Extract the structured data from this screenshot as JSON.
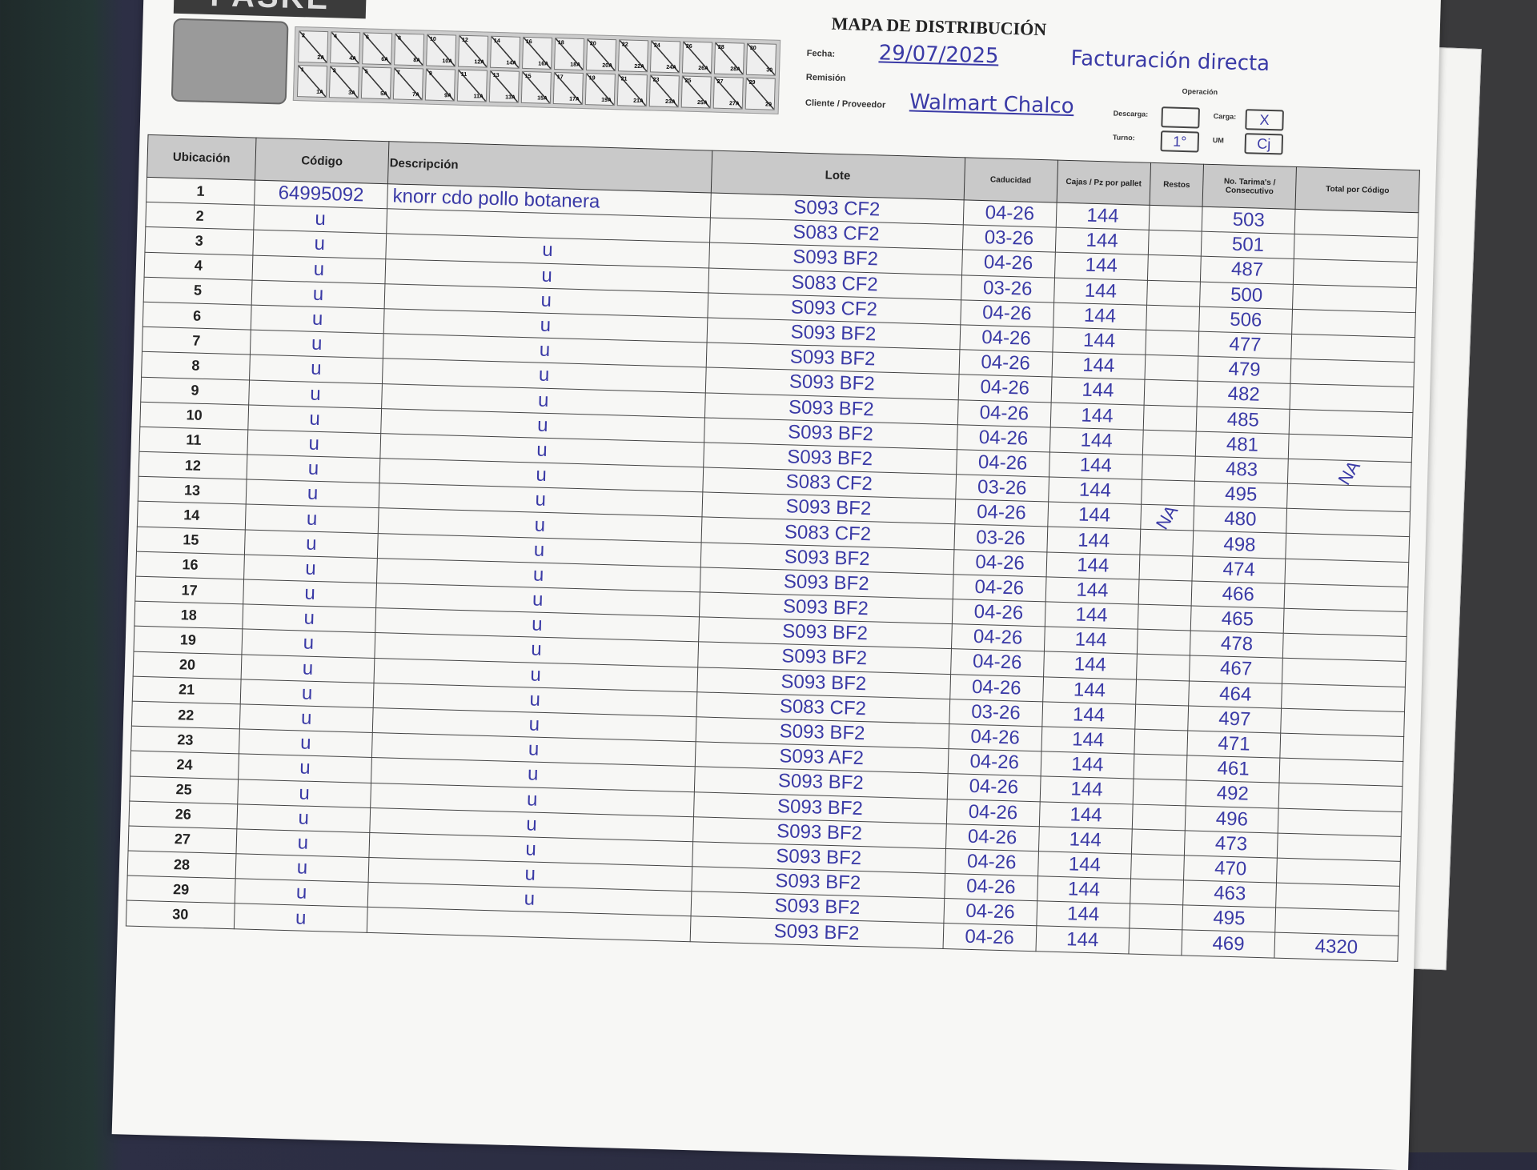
{
  "form": {
    "logo": "PASKE",
    "title": "MAPA DE DISTRIBUCIÓN",
    "fecha_label": "Fecha:",
    "fecha": "29/07/2025",
    "remision_label": "Remisión",
    "remision": "",
    "cliente_label": "Cliente / Proveedor",
    "cliente": "Walmart Chalco",
    "nota": "Facturación directa",
    "operacion_label": "Operación",
    "descarga_label": "Descarga:",
    "descarga": "",
    "carga_label": "Carga:",
    "carga": "X",
    "turno_label": "Turno:",
    "turno": "1°",
    "um_label": "UM",
    "um": "Cj"
  },
  "truck_positions": {
    "top": [
      [
        "2",
        "2A"
      ],
      [
        "4",
        "4A"
      ],
      [
        "6",
        "6A"
      ],
      [
        "8",
        "8A"
      ],
      [
        "10",
        "10A"
      ],
      [
        "12",
        "12A"
      ],
      [
        "14",
        "14A"
      ],
      [
        "16",
        "16A"
      ],
      [
        "18",
        "18A"
      ],
      [
        "20",
        "20A"
      ],
      [
        "22",
        "22A"
      ],
      [
        "24",
        "24A"
      ],
      [
        "26",
        "26A"
      ],
      [
        "28",
        "28A"
      ],
      [
        "30",
        "30"
      ]
    ],
    "bottom": [
      [
        "1",
        "1A"
      ],
      [
        "3",
        "3A"
      ],
      [
        "5",
        "5A"
      ],
      [
        "7",
        "7A"
      ],
      [
        "9",
        "9A"
      ],
      [
        "11",
        "11A"
      ],
      [
        "13",
        "13A"
      ],
      [
        "15",
        "15A"
      ],
      [
        "17",
        "17A"
      ],
      [
        "19",
        "19A"
      ],
      [
        "21",
        "21A"
      ],
      [
        "23",
        "23A"
      ],
      [
        "25",
        "25A"
      ],
      [
        "27",
        "27A"
      ],
      [
        "29",
        "29"
      ]
    ]
  },
  "table": {
    "headers": [
      "Ubicación",
      "Código",
      "Descripción",
      "Lote",
      "Caducidad",
      "Cajas / Pz por pallet",
      "Restos",
      "No. Tarima's / Consecutivo",
      "Total por Código"
    ],
    "ditto": "u",
    "first_codigo": "64995092",
    "first_descripcion": "knorr cdo pollo botanera",
    "lotes": [
      "S093 CF2",
      "S083 CF2",
      "S093 BF2",
      "S083 CF2",
      "S093 CF2",
      "S093 BF2",
      "S093 BF2",
      "S093 BF2",
      "S093 BF2",
      "S093 BF2",
      "S093 BF2",
      "S083 CF2",
      "S093 BF2",
      "S083 CF2",
      "S093 BF2",
      "S093 BF2",
      "S093 BF2",
      "S093 BF2",
      "S093 BF2",
      "S093 BF2",
      "S083 CF2",
      "S093 BF2",
      "S093 AF2",
      "S093 BF2",
      "S093 BF2",
      "S093 BF2",
      "S093 BF2",
      "S093 BF2",
      "S093 BF2",
      "S093 BF2"
    ],
    "caducidad": [
      "04-26",
      "03-26",
      "04-26",
      "03-26",
      "04-26",
      "04-26",
      "04-26",
      "04-26",
      "04-26",
      "04-26",
      "04-26",
      "03-26",
      "04-26",
      "03-26",
      "04-26",
      "04-26",
      "04-26",
      "04-26",
      "04-26",
      "04-26",
      "03-26",
      "04-26",
      "04-26",
      "04-26",
      "04-26",
      "04-26",
      "04-26",
      "04-26",
      "04-26",
      "04-26"
    ],
    "cajas": "144",
    "consecutivo": [
      "503",
      "501",
      "487",
      "500",
      "506",
      "477",
      "479",
      "482",
      "485",
      "481",
      "483",
      "495",
      "480",
      "498",
      "474",
      "466",
      "465",
      "478",
      "467",
      "464",
      "497",
      "471",
      "461",
      "492",
      "496",
      "473",
      "470",
      "463",
      "495",
      "469"
    ],
    "restos_mark": "NA",
    "total_mark": "NA",
    "total": "4320"
  },
  "colors": {
    "ink": "#3a3aa6",
    "header_bg": "#c9c9c9",
    "paper": "#f7f7f5"
  }
}
